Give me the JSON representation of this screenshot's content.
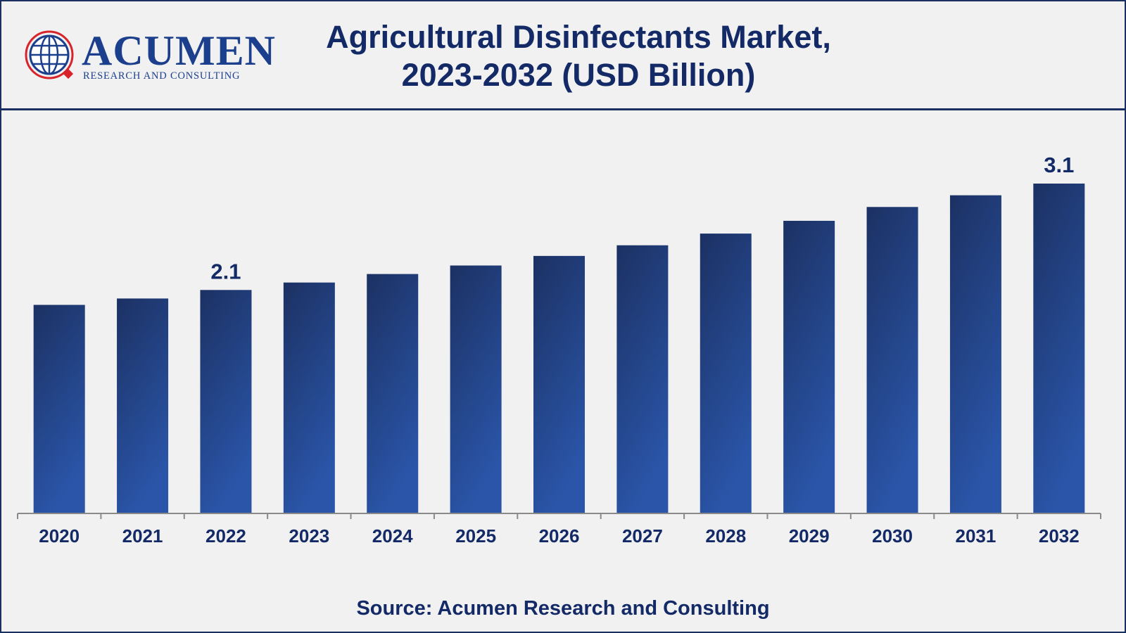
{
  "logo": {
    "name": "ACUMEN",
    "tagline": "RESEARCH AND CONSULTING"
  },
  "title": {
    "line1": "Agricultural Disinfectants Market,",
    "line2": "2023-2032 (USD Billion)"
  },
  "source": "Source: Acumen Research and Consulting",
  "colors": {
    "bar_top": "#1c3163",
    "bar_bottom": "#2a55a8",
    "text": "#142a66",
    "axis": "#8a8a8a",
    "frame": "#1b2f63"
  },
  "chart_data": {
    "type": "bar",
    "title": "Agricultural Disinfectants Market, 2023-2032 (USD Billion)",
    "xlabel": "",
    "ylabel": "",
    "categories": [
      "2020",
      "2021",
      "2022",
      "2023",
      "2024",
      "2025",
      "2026",
      "2027",
      "2028",
      "2029",
      "2030",
      "2031",
      "2032"
    ],
    "values": [
      1.96,
      2.02,
      2.1,
      2.17,
      2.25,
      2.33,
      2.42,
      2.52,
      2.63,
      2.75,
      2.88,
      2.99,
      3.1
    ],
    "data_labels": {
      "2022": "2.1",
      "2032": "3.1"
    },
    "ylim": [
      0,
      3.3
    ],
    "grid": false,
    "legend": "none"
  }
}
